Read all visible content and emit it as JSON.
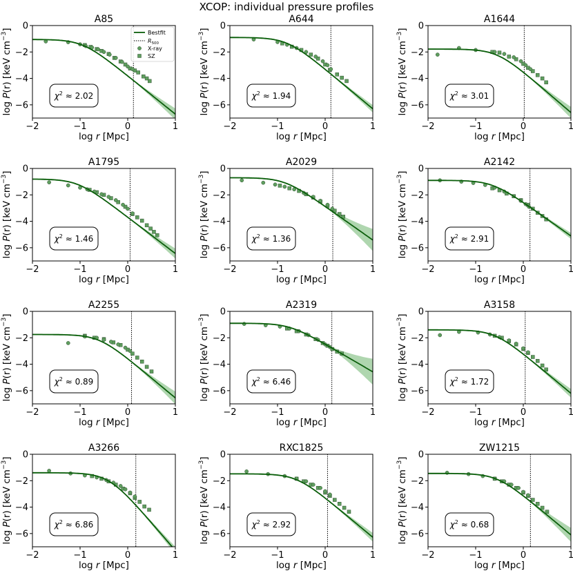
{
  "figure": {
    "suptitle": "XCOP: individual pressure profiles",
    "xlabel_prefix": "log",
    "xlabel_var": "r",
    "xlabel_unit": " [Mpc]",
    "ylabel_prefix": "log",
    "ylabel_var": "P",
    "ylabel_arg": "(r)",
    "ylabel_unit": " [keV cm",
    "ylabel_exp": "−3",
    "ylabel_close": "]",
    "chi_prefix": "χ",
    "chi_exp": "2",
    "chi_approx": " ≈ ",
    "legend": {
      "bestfit": "Bestfit",
      "r500_main": "R",
      "r500_sub": "500",
      "xray": "X-ray",
      "sz": "SZ"
    },
    "colors": {
      "line": "#0b5e0b",
      "band": "#8dc48d",
      "marker": "#5f9e5f",
      "marker_edge": "#2f4f2f"
    }
  },
  "chart_data": [
    {
      "type": "line",
      "title": "A85",
      "chi2": "2.02",
      "r500": 0.12,
      "P0": -1.05,
      "rc": -0.95,
      "slope": 2.9,
      "band": [
        0.1,
        0.4
      ],
      "xray": [
        [
          -1.72,
          -1.2
        ],
        [
          -1.25,
          -1.26
        ],
        [
          -1.0,
          -1.42
        ],
        [
          -0.88,
          -1.55
        ],
        [
          -0.75,
          -1.66
        ],
        [
          -0.62,
          -1.8
        ],
        [
          -0.5,
          -2.0
        ],
        [
          -0.38,
          -2.2
        ],
        [
          -0.25,
          -2.45
        ],
        [
          -0.12,
          -2.75
        ],
        [
          0.0,
          -3.1
        ],
        [
          0.1,
          -3.3
        ]
      ],
      "sz": [
        [
          -0.9,
          -1.48
        ],
        [
          -0.78,
          -1.62
        ],
        [
          -0.65,
          -1.78
        ],
        [
          -0.55,
          -1.92
        ],
        [
          -0.4,
          -2.15
        ],
        [
          -0.28,
          -2.45
        ],
        [
          -0.15,
          -2.72
        ],
        [
          -0.05,
          -2.95
        ],
        [
          0.05,
          -3.25
        ],
        [
          0.15,
          -3.4
        ],
        [
          0.22,
          -3.55
        ],
        [
          0.33,
          -3.85
        ],
        [
          0.4,
          -4.0
        ],
        [
          0.46,
          -4.2
        ]
      ],
      "xlim": [
        -2,
        1
      ],
      "ylim": [
        -7,
        0
      ],
      "xticks": [
        -2,
        -1,
        0,
        1
      ],
      "yticks": [
        0,
        -2,
        -4,
        -6
      ]
    },
    {
      "type": "line",
      "title": "A644",
      "chi2": "1.94",
      "r500": 0.12,
      "P0": -0.9,
      "rc": -0.8,
      "slope": 3.0,
      "band": [
        0.1,
        0.25
      ],
      "xray": [
        [
          -1.5,
          -1.05
        ],
        [
          -1.0,
          -1.25
        ],
        [
          -0.8,
          -1.45
        ],
        [
          -0.6,
          -1.7
        ],
        [
          -0.4,
          -2.0
        ],
        [
          -0.2,
          -2.35
        ],
        [
          -0.05,
          -2.7
        ],
        [
          0.05,
          -3.0
        ],
        [
          0.12,
          -3.3
        ]
      ],
      "sz": [
        [
          -0.9,
          -1.35
        ],
        [
          -0.7,
          -1.6
        ],
        [
          -0.5,
          -1.85
        ],
        [
          -0.3,
          -2.2
        ],
        [
          -0.15,
          -2.5
        ],
        [
          0.0,
          -2.95
        ],
        [
          0.1,
          -3.35
        ],
        [
          0.25,
          -3.7
        ],
        [
          0.35,
          -3.95
        ],
        [
          0.45,
          -4.2
        ]
      ],
      "xlim": [
        -2,
        1
      ],
      "ylim": [
        -7,
        0
      ],
      "xticks": [
        -2,
        -1,
        0,
        1
      ],
      "yticks": [
        0,
        -2,
        -4,
        -6
      ]
    },
    {
      "type": "line",
      "title": "A1644",
      "chi2": "3.01",
      "r500": 0.02,
      "P0": -1.78,
      "rc": -0.55,
      "slope": 3.1,
      "band": [
        0.1,
        0.4
      ],
      "xray": [
        [
          -1.8,
          -2.2
        ],
        [
          -1.35,
          -1.7
        ],
        [
          -1.0,
          -1.85
        ],
        [
          -0.6,
          -2.0
        ],
        [
          -0.4,
          -2.15
        ],
        [
          -0.2,
          -2.4
        ],
        [
          -0.05,
          -2.7
        ],
        [
          0.05,
          -3.0
        ],
        [
          0.15,
          -3.3
        ]
      ],
      "sz": [
        [
          -0.65,
          -2.0
        ],
        [
          -0.5,
          -2.05
        ],
        [
          -0.3,
          -2.35
        ],
        [
          -0.15,
          -2.55
        ],
        [
          0.0,
          -2.9
        ],
        [
          0.1,
          -3.2
        ],
        [
          0.2,
          -3.45
        ],
        [
          0.3,
          -3.75
        ],
        [
          0.4,
          -4.0
        ],
        [
          0.48,
          -4.3
        ]
      ],
      "xlim": [
        -2,
        1
      ],
      "ylim": [
        -7,
        0
      ],
      "xticks": [
        -2,
        -1,
        0,
        1
      ],
      "yticks": [
        0,
        -2,
        -4,
        -6
      ]
    },
    {
      "type": "line",
      "title": "A1795",
      "chi2": "1.46",
      "r500": 0.05,
      "P0": -0.8,
      "rc": -1.05,
      "slope": 2.75,
      "band": [
        0.1,
        0.35
      ],
      "xray": [
        [
          -1.65,
          -1.05
        ],
        [
          -1.25,
          -1.28
        ],
        [
          -1.0,
          -1.45
        ],
        [
          -0.85,
          -1.58
        ],
        [
          -0.7,
          -1.75
        ],
        [
          -0.55,
          -1.95
        ],
        [
          -0.4,
          -2.15
        ],
        [
          -0.25,
          -2.4
        ],
        [
          -0.1,
          -2.75
        ],
        [
          0.0,
          -3.05
        ],
        [
          0.1,
          -3.4
        ]
      ],
      "sz": [
        [
          -0.8,
          -1.62
        ],
        [
          -0.65,
          -1.8
        ],
        [
          -0.5,
          -2.0
        ],
        [
          -0.35,
          -2.25
        ],
        [
          -0.2,
          -2.55
        ],
        [
          -0.05,
          -2.9
        ],
        [
          0.1,
          -3.45
        ],
        [
          0.2,
          -3.7
        ],
        [
          0.3,
          -3.95
        ],
        [
          0.4,
          -4.3
        ],
        [
          0.48,
          -4.55
        ],
        [
          0.55,
          -4.8
        ],
        [
          0.62,
          -5.05
        ]
      ],
      "xlim": [
        -2,
        1
      ],
      "ylim": [
        -7,
        0
      ],
      "xticks": [
        -2,
        -1,
        0,
        1
      ],
      "yticks": [
        0,
        -2,
        -4,
        -6
      ]
    },
    {
      "type": "line",
      "title": "A2029",
      "chi2": "1.36",
      "r500": 0.16,
      "P0": -0.7,
      "rc": -0.85,
      "slope": 2.55,
      "band": [
        0.1,
        0.8
      ],
      "xray": [
        [
          -1.75,
          -0.9
        ],
        [
          -1.3,
          -1.08
        ],
        [
          -1.05,
          -1.22
        ],
        [
          -0.85,
          -1.38
        ],
        [
          -0.65,
          -1.58
        ],
        [
          -0.45,
          -1.85
        ],
        [
          -0.25,
          -2.15
        ],
        [
          -0.1,
          -2.45
        ],
        [
          0.05,
          -2.75
        ],
        [
          0.15,
          -3.05
        ]
      ],
      "sz": [
        [
          -0.95,
          -1.3
        ],
        [
          -0.75,
          -1.5
        ],
        [
          -0.55,
          -1.7
        ],
        [
          -0.4,
          -1.95
        ],
        [
          -0.25,
          -2.2
        ],
        [
          -0.1,
          -2.5
        ],
        [
          0.05,
          -2.85
        ],
        [
          0.2,
          -3.2
        ],
        [
          0.3,
          -3.45
        ],
        [
          0.38,
          -3.65
        ]
      ],
      "xlim": [
        -2,
        1
      ],
      "ylim": [
        -7,
        0
      ],
      "xticks": [
        -2,
        -1,
        0,
        1
      ],
      "yticks": [
        0,
        -2,
        -4,
        -6
      ]
    },
    {
      "type": "line",
      "title": "A2142",
      "chi2": "2.91",
      "r500": 0.14,
      "P0": -0.9,
      "rc": -0.65,
      "slope": 2.55,
      "band": [
        0.08,
        0.2
      ],
      "xray": [
        [
          -1.75,
          -0.9
        ],
        [
          -1.3,
          -1.0
        ],
        [
          -1.05,
          -1.1
        ],
        [
          -0.8,
          -1.25
        ],
        [
          -0.6,
          -1.45
        ],
        [
          -0.4,
          -1.75
        ],
        [
          -0.2,
          -2.1
        ],
        [
          -0.05,
          -2.45
        ],
        [
          0.05,
          -2.7
        ],
        [
          0.12,
          -2.9
        ]
      ],
      "sz": [
        [
          -0.65,
          -1.5
        ],
        [
          -0.5,
          -1.65
        ],
        [
          -0.35,
          -1.9
        ],
        [
          -0.2,
          -2.1
        ],
        [
          -0.05,
          -2.4
        ],
        [
          0.1,
          -2.75
        ],
        [
          0.2,
          -3.05
        ],
        [
          0.3,
          -3.35
        ],
        [
          0.4,
          -3.6
        ],
        [
          0.48,
          -3.85
        ]
      ],
      "xlim": [
        -2,
        1
      ],
      "ylim": [
        -7,
        0
      ],
      "xticks": [
        -2,
        -1,
        0,
        1
      ],
      "yticks": [
        0,
        -2,
        -4,
        -6
      ]
    },
    {
      "type": "line",
      "title": "A2255",
      "chi2": "0.89",
      "r500": 0.08,
      "P0": -1.75,
      "rc": -0.6,
      "slope": 3.0,
      "band": [
        0.1,
        0.45
      ],
      "xray": [
        [
          -1.25,
          -2.4
        ],
        [
          -0.9,
          -1.9
        ],
        [
          -0.65,
          -2.0
        ],
        [
          -0.5,
          -2.15
        ],
        [
          -0.35,
          -2.3
        ],
        [
          -0.2,
          -2.5
        ],
        [
          -0.05,
          -2.75
        ],
        [
          0.05,
          -3.0
        ]
      ],
      "sz": [
        [
          -0.9,
          -1.85
        ],
        [
          -0.7,
          -2.0
        ],
        [
          -0.5,
          -2.1
        ],
        [
          -0.3,
          -2.35
        ],
        [
          -0.15,
          -2.55
        ],
        [
          0.0,
          -2.9
        ],
        [
          0.1,
          -3.2
        ],
        [
          0.2,
          -3.5
        ],
        [
          0.3,
          -3.8
        ],
        [
          0.4,
          -4.2
        ],
        [
          0.5,
          -4.55
        ]
      ],
      "xlim": [
        -2,
        1
      ],
      "ylim": [
        -7,
        0
      ],
      "xticks": [
        -2,
        -1,
        0,
        1
      ],
      "yticks": [
        0,
        -2,
        -4,
        -6
      ]
    },
    {
      "type": "line",
      "title": "A2319",
      "chi2": "6.46",
      "r500": 0.14,
      "P0": -0.9,
      "rc": -0.75,
      "slope": 2.1,
      "band": [
        0.1,
        0.95
      ],
      "xray": [
        [
          -1.7,
          -0.95
        ],
        [
          -1.25,
          -1.05
        ],
        [
          -0.95,
          -1.15
        ],
        [
          -0.75,
          -1.3
        ],
        [
          -0.55,
          -1.5
        ],
        [
          -0.35,
          -1.8
        ],
        [
          -0.15,
          -2.15
        ],
        [
          0.0,
          -2.5
        ],
        [
          0.1,
          -2.7
        ]
      ],
      "sz": [
        [
          -0.8,
          -1.3
        ],
        [
          -0.6,
          -1.5
        ],
        [
          -0.4,
          -1.75
        ],
        [
          -0.2,
          -2.1
        ],
        [
          -0.05,
          -2.4
        ],
        [
          0.05,
          -2.6
        ],
        [
          0.15,
          -2.85
        ],
        [
          0.25,
          -3.05
        ],
        [
          0.35,
          -3.2
        ]
      ],
      "xlim": [
        -2,
        1
      ],
      "ylim": [
        -7,
        0
      ],
      "xticks": [
        -2,
        -1,
        0,
        1
      ],
      "yticks": [
        0,
        -2,
        -4,
        -6
      ]
    },
    {
      "type": "line",
      "title": "A3158",
      "chi2": "1.72",
      "r500": 0.04,
      "P0": -1.4,
      "rc": -0.6,
      "slope": 3.0,
      "band": [
        0.1,
        0.3
      ],
      "xray": [
        [
          -1.75,
          -1.8
        ],
        [
          -1.35,
          -1.55
        ],
        [
          -0.95,
          -1.6
        ],
        [
          -0.7,
          -1.75
        ],
        [
          -0.5,
          -1.95
        ],
        [
          -0.3,
          -2.2
        ],
        [
          -0.15,
          -2.45
        ],
        [
          0.0,
          -2.8
        ],
        [
          0.1,
          -3.1
        ]
      ],
      "sz": [
        [
          -0.6,
          -1.85
        ],
        [
          -0.45,
          -2.0
        ],
        [
          -0.3,
          -2.25
        ],
        [
          -0.15,
          -2.5
        ],
        [
          0.0,
          -2.85
        ],
        [
          0.1,
          -3.15
        ],
        [
          0.2,
          -3.45
        ],
        [
          0.3,
          -3.75
        ],
        [
          0.4,
          -4.1
        ],
        [
          0.48,
          -4.4
        ]
      ],
      "xlim": [
        -2,
        1
      ],
      "ylim": [
        -7,
        0
      ],
      "xticks": [
        -2,
        -1,
        0,
        1
      ],
      "yticks": [
        0,
        -2,
        -4,
        -6
      ]
    },
    {
      "type": "line",
      "title": "A3266",
      "chi2": "6.86",
      "r500": 0.17,
      "P0": -1.4,
      "rc": -0.4,
      "slope": 4.2,
      "band": [
        0.1,
        0.25
      ],
      "xray": [
        [
          -1.65,
          -1.25
        ],
        [
          -1.2,
          -1.45
        ],
        [
          -0.9,
          -1.6
        ],
        [
          -0.65,
          -1.75
        ],
        [
          -0.45,
          -1.95
        ],
        [
          -0.3,
          -2.15
        ],
        [
          -0.15,
          -2.4
        ],
        [
          -0.05,
          -2.65
        ],
        [
          0.05,
          -2.9
        ],
        [
          0.15,
          -3.2
        ]
      ],
      "sz": [
        [
          -0.75,
          -1.65
        ],
        [
          -0.55,
          -1.85
        ],
        [
          -0.4,
          -2.05
        ],
        [
          -0.25,
          -2.3
        ],
        [
          -0.1,
          -2.6
        ],
        [
          0.05,
          -2.95
        ],
        [
          0.15,
          -3.3
        ],
        [
          0.25,
          -3.6
        ],
        [
          0.35,
          -3.95
        ],
        [
          0.45,
          -4.2
        ]
      ],
      "xlim": [
        -2,
        1
      ],
      "ylim": [
        -7,
        0
      ],
      "xticks": [
        -2,
        -1,
        0,
        1
      ],
      "yticks": [
        0,
        -2,
        -4,
        -6
      ]
    },
    {
      "type": "line",
      "title": "RXC1825",
      "chi2": "2.92",
      "r500": 0.05,
      "P0": -1.48,
      "rc": -0.6,
      "slope": 3.0,
      "band": [
        0.1,
        0.3
      ],
      "xray": [
        [
          -1.65,
          -1.3
        ],
        [
          -1.2,
          -1.5
        ],
        [
          -0.85,
          -1.65
        ],
        [
          -0.6,
          -1.85
        ],
        [
          -0.4,
          -2.05
        ],
        [
          -0.25,
          -2.3
        ],
        [
          -0.1,
          -2.55
        ],
        [
          0.0,
          -2.8
        ],
        [
          0.1,
          -3.05
        ]
      ],
      "sz": [
        [
          -0.6,
          -1.85
        ],
        [
          -0.45,
          -2.05
        ],
        [
          -0.3,
          -2.3
        ],
        [
          -0.15,
          -2.55
        ],
        [
          0.0,
          -2.9
        ],
        [
          0.1,
          -3.15
        ],
        [
          0.2,
          -3.45
        ],
        [
          0.3,
          -3.75
        ],
        [
          0.4,
          -4.05
        ],
        [
          0.5,
          -4.35
        ]
      ],
      "xlim": [
        -2,
        1
      ],
      "ylim": [
        -7,
        0
      ],
      "xticks": [
        -2,
        -1,
        0,
        1
      ],
      "yticks": [
        0,
        -2,
        -4,
        -6
      ]
    },
    {
      "type": "line",
      "title": "ZW1215",
      "chi2": "0.68",
      "r500": 0.15,
      "P0": -1.45,
      "rc": -0.55,
      "slope": 3.0,
      "band": [
        0.1,
        0.5
      ],
      "xray": [
        [
          -1.6,
          -1.4
        ],
        [
          -1.15,
          -1.5
        ],
        [
          -0.85,
          -1.65
        ],
        [
          -0.6,
          -1.85
        ],
        [
          -0.4,
          -2.05
        ],
        [
          -0.25,
          -2.3
        ],
        [
          -0.1,
          -2.55
        ],
        [
          0.0,
          -2.85
        ],
        [
          0.1,
          -3.1
        ]
      ],
      "sz": [
        [
          -0.6,
          -1.85
        ],
        [
          -0.45,
          -2.05
        ],
        [
          -0.3,
          -2.3
        ],
        [
          -0.15,
          -2.55
        ],
        [
          0.0,
          -2.9
        ],
        [
          0.1,
          -3.15
        ],
        [
          0.2,
          -3.45
        ],
        [
          0.3,
          -3.75
        ],
        [
          0.4,
          -4.05
        ],
        [
          0.5,
          -4.35
        ]
      ],
      "xlim": [
        -2,
        1
      ],
      "ylim": [
        -7,
        0
      ],
      "xticks": [
        -2,
        -1,
        0,
        1
      ],
      "yticks": [
        0,
        -2,
        -4,
        -6
      ]
    }
  ]
}
